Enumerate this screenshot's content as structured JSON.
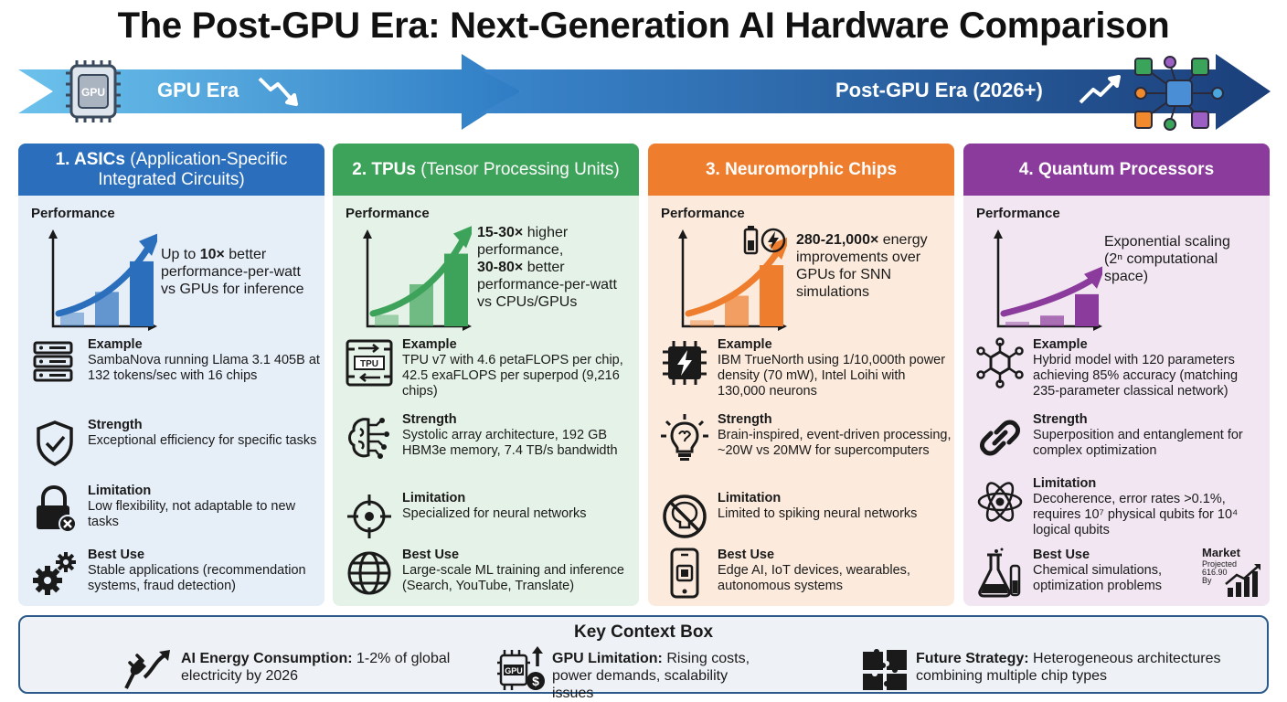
{
  "title": "The Post-GPU Era: Next-Generation AI Hardware Comparison",
  "banner": {
    "left_label": "GPU Era",
    "right_label": "Post-GPU Era (2026+)",
    "chip_label": "GPU",
    "colors": {
      "light": "#4aa7dd",
      "dark": "#1e4d8c"
    }
  },
  "panels": [
    {
      "title_bold": "1. ASICs",
      "title_rest": " (Application-Specific Integrated Circuits)",
      "perf_label": "Performance",
      "perf_parts": [
        {
          "t": "Up to ",
          "b": false
        },
        {
          "t": "10×",
          "b": true
        },
        {
          "t": " better performance-per-watt vs GPUs for inference",
          "b": false
        }
      ],
      "bars": [
        0.18,
        0.45,
        0.85
      ],
      "color": "#2b6fbc",
      "rows": [
        {
          "icon": "server-rack-icon",
          "heading": "Example",
          "text": "SambaNova running Llama 3.1 405B at 132 tokens/sec with 16 chips"
        },
        {
          "icon": "shield-check-icon",
          "heading": "Strength",
          "text": "Exceptional efficiency for specific tasks"
        },
        {
          "icon": "lock-x-icon",
          "heading": "Limitation",
          "text": "Low flexibility, not adaptable to new tasks"
        },
        {
          "icon": "gears-icon",
          "heading": "Best Use",
          "text": "Stable applications (recommendation systems, fraud detection)"
        }
      ]
    },
    {
      "title_bold": "2. TPUs",
      "title_rest": " (Tensor Processing Units)",
      "perf_label": "Performance",
      "perf_parts": [
        {
          "t": "15-30×",
          "b": true
        },
        {
          "t": " higher performance,\n",
          "b": false
        },
        {
          "t": "30-80×",
          "b": true
        },
        {
          "t": " better performance-per-watt vs CPUs/GPUs",
          "b": false
        }
      ],
      "bars": [
        0.15,
        0.55,
        0.95
      ],
      "color": "#3ea35a",
      "rows": [
        {
          "icon": "tpu-chip-icon",
          "heading": "Example",
          "text": "TPU v7 with 4.6 petaFLOPS per chip, 42.5 exaFLOPS per superpod (9,216 chips)",
          "chip_label": "TPU"
        },
        {
          "icon": "brain-circuit-icon",
          "heading": "Strength",
          "text": "Systolic array architecture, 192 GB HBM3e memory, 7.4 TB/s bandwidth"
        },
        {
          "icon": "crosshair-icon",
          "heading": "Limitation",
          "text": "Specialized for neural networks"
        },
        {
          "icon": "globe-icon",
          "heading": "Best Use",
          "text": "Large-scale ML training and inference (Search, YouTube, Translate)"
        }
      ]
    },
    {
      "title_bold": "3. Neuromorphic Chips",
      "title_rest": "",
      "perf_label": "Performance",
      "perf_parts": [
        {
          "t": "280-21,000×",
          "b": true
        },
        {
          "t": " energy improvements over GPUs for SNN simulations",
          "b": false
        }
      ],
      "bars": [
        0.08,
        0.4,
        0.8
      ],
      "color": "#ee7e2d",
      "rows": [
        {
          "icon": "lightning-chip-icon",
          "heading": "Example",
          "text": "IBM TrueNorth using 1/10,000th power density (70 mW), Intel Loihi with 130,000 neurons"
        },
        {
          "icon": "brain-bulb-icon",
          "heading": "Strength",
          "text": "Brain-inspired, event-driven processing, ~20W vs 20MW for supercomputers"
        },
        {
          "icon": "brain-blocked-icon",
          "heading": "Limitation",
          "text": "Limited to spiking neural networks"
        },
        {
          "icon": "smartphone-chip-icon",
          "heading": "Best Use",
          "text": "Edge AI, IoT devices, wearables, autonomous systems"
        }
      ]
    },
    {
      "title_bold": "4. Quantum Processors",
      "title_rest": "",
      "perf_label": "Performance",
      "perf_parts": [
        {
          "t": "Exponential scaling\n(2ⁿ computational space)",
          "b": false
        }
      ],
      "bars": [
        0.06,
        0.14,
        0.42
      ],
      "color": "#8b3b9b",
      "rows": [
        {
          "icon": "molecule-icon",
          "heading": "Example",
          "text": "Hybrid model with 120 parameters achieving 85% accuracy (matching 235-parameter classical network)"
        },
        {
          "icon": "chain-link-icon",
          "heading": "Strength",
          "text": "Superposition and entanglement for complex optimization"
        },
        {
          "icon": "atom-icon",
          "heading": "Limitation",
          "text": "Decoherence, error rates >0.1%, requires 10⁷ physical qubits for 10⁴ logical qubits"
        },
        {
          "icon": "flask-icon",
          "heading": "Best Use",
          "text": "Chemical simulations, optimization problems"
        }
      ],
      "market": {
        "title": "Market",
        "note": "Projected 616.90 By"
      }
    }
  ],
  "context": {
    "title": "Key Context Box",
    "items": [
      {
        "icon": "power-plug-icon",
        "bold": "AI Energy Consumption:",
        "text": " 1-2% of global electricity by 2026"
      },
      {
        "icon": "gpu-cost-icon",
        "bold": "GPU Limitation:",
        "text": " Rising costs, power demands, scalability issues",
        "chip_label": "GPU"
      },
      {
        "icon": "puzzle-icon",
        "bold": "Future Strategy:",
        "text": " Heterogeneous architectures combining multiple chip types"
      }
    ]
  }
}
